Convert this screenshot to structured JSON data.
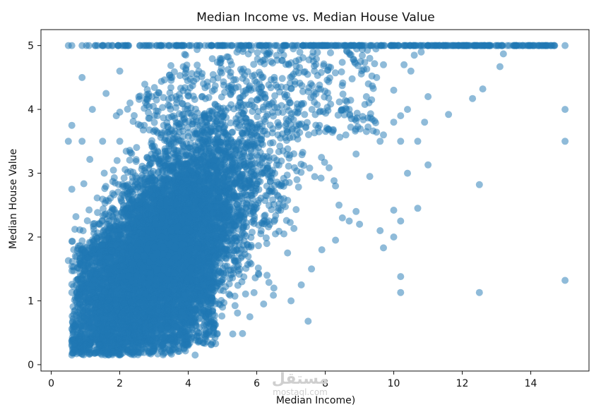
{
  "chart_data": {
    "type": "scatter",
    "title": "Median Income vs. Median House Value",
    "xlabel": "Median Income)",
    "ylabel": "Median House Value",
    "xlim": [
      -0.3,
      15.7
    ],
    "ylim": [
      -0.1,
      5.25
    ],
    "xticks": [
      0,
      2,
      4,
      6,
      8,
      10,
      12,
      14
    ],
    "yticks": [
      0,
      1,
      2,
      3,
      4,
      5
    ],
    "grid": false,
    "legend": "none",
    "point_color": "#1f77b4",
    "point_opacity": 0.5,
    "cap_value": 5.0,
    "points": [
      [
        0.5,
        5.0
      ],
      [
        0.6,
        5.0
      ],
      [
        0.9,
        5.0
      ],
      [
        1.1,
        5.0
      ],
      [
        1.3,
        5.0
      ],
      [
        15.0,
        5.0
      ],
      [
        14.5,
        5.0
      ],
      [
        14.1,
        5.0
      ],
      [
        0.9,
        4.5
      ],
      [
        0.9,
        3.5
      ],
      [
        0.5,
        3.5
      ],
      [
        0.6,
        3.75
      ],
      [
        0.6,
        2.75
      ],
      [
        0.5,
        1.63
      ],
      [
        0.6,
        1.13
      ],
      [
        0.6,
        0.56
      ],
      [
        0.6,
        0.38
      ],
      [
        0.6,
        0.15
      ],
      [
        1.4,
        0.3
      ],
      [
        1.8,
        0.2
      ],
      [
        2.0,
        0.15
      ],
      [
        4.2,
        0.15
      ],
      [
        4.0,
        0.3
      ],
      [
        1.2,
        4.0
      ],
      [
        1.6,
        4.25
      ],
      [
        2.0,
        4.6
      ],
      [
        1.5,
        3.5
      ],
      [
        2.0,
        3.5
      ],
      [
        2.3,
        4.1
      ],
      [
        1.9,
        3.9
      ],
      [
        7.5,
        0.68
      ],
      [
        7.0,
        1.0
      ],
      [
        7.3,
        1.25
      ],
      [
        7.6,
        1.5
      ],
      [
        6.9,
        1.75
      ],
      [
        7.9,
        1.8
      ],
      [
        8.3,
        1.95
      ],
      [
        8.5,
        2.3
      ],
      [
        8.7,
        2.25
      ],
      [
        8.9,
        2.4
      ],
      [
        9.0,
        2.2
      ],
      [
        8.4,
        2.5
      ],
      [
        8.3,
        2.8
      ],
      [
        9.3,
        2.95
      ],
      [
        8.9,
        3.3
      ],
      [
        8.6,
        3.6
      ],
      [
        8.7,
        4.0
      ],
      [
        9.2,
        4.2
      ],
      [
        9.5,
        4.5
      ],
      [
        9.7,
        4.7
      ],
      [
        9.3,
        4.8
      ],
      [
        9.6,
        3.5
      ],
      [
        9.7,
        3.6
      ],
      [
        10.0,
        3.8
      ],
      [
        10.2,
        3.9
      ],
      [
        10.4,
        4.0
      ],
      [
        10.7,
        3.5
      ],
      [
        10.2,
        3.5
      ],
      [
        10.0,
        4.3
      ],
      [
        10.5,
        4.6
      ],
      [
        10.3,
        4.7
      ],
      [
        10.8,
        4.9
      ],
      [
        10.6,
        4.85
      ],
      [
        11.0,
        4.2
      ],
      [
        10.9,
        3.8
      ],
      [
        11.0,
        3.13
      ],
      [
        10.4,
        3.0
      ],
      [
        10.7,
        2.45
      ],
      [
        10.0,
        2.42
      ],
      [
        9.6,
        2.1
      ],
      [
        10.2,
        2.25
      ],
      [
        10.0,
        2.0
      ],
      [
        9.7,
        1.83
      ],
      [
        10.2,
        1.38
      ],
      [
        10.2,
        1.13
      ],
      [
        12.5,
        1.13
      ],
      [
        15.0,
        1.32
      ],
      [
        12.5,
        2.82
      ],
      [
        11.6,
        3.92
      ],
      [
        12.3,
        4.17
      ],
      [
        12.6,
        4.32
      ],
      [
        13.1,
        4.67
      ],
      [
        13.2,
        4.87
      ],
      [
        15.0,
        4.0
      ],
      [
        15.0,
        3.5
      ],
      [
        5.3,
        0.48
      ],
      [
        5.8,
        0.75
      ],
      [
        6.2,
        0.95
      ],
      [
        6.5,
        1.2
      ],
      [
        6.3,
        1.4
      ],
      [
        5.0,
        0.9
      ],
      [
        4.6,
        0.8
      ]
    ],
    "dense_cloud": {
      "n": 7500,
      "x_min": 0.5,
      "x_max": 8.5,
      "y_min": 0.15,
      "y_max": 5.0,
      "slope": 0.42,
      "intercept": 0.45,
      "cap_count": 380
    }
  },
  "watermark": {
    "main": "مستقل",
    "sub": "mostaql.com"
  }
}
